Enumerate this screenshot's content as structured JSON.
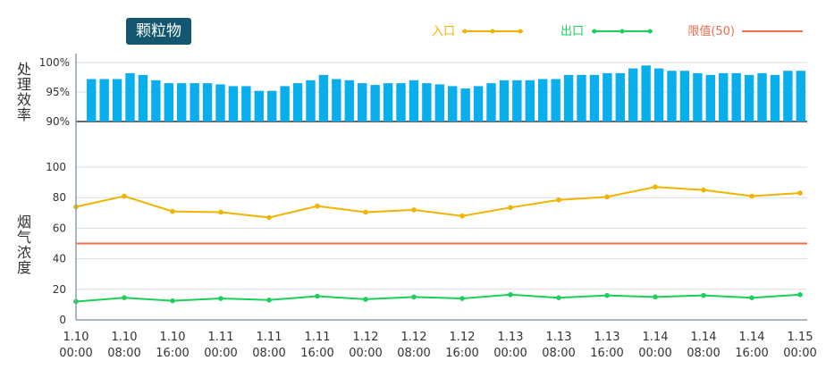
{
  "header": {
    "title": "颗粒物"
  },
  "legend": [
    {
      "label": "入口",
      "color": "#f0b400",
      "type": "line-dot"
    },
    {
      "label": "出口",
      "color": "#1ad058",
      "type": "line-dot"
    },
    {
      "label": "限值(50)",
      "color": "#f26c4f",
      "type": "line"
    }
  ],
  "chart_data": [
    {
      "type": "bar",
      "ylabel": "处理效率",
      "ylim": [
        90,
        100
      ],
      "yticks": [
        "90%",
        "95%",
        "100%"
      ],
      "color": "#0aaeea",
      "values": [
        97.2,
        97.2,
        97.2,
        98.2,
        97.9,
        97.0,
        96.5,
        96.5,
        96.5,
        96.5,
        96.3,
        96.0,
        96.0,
        95.2,
        95.2,
        96.0,
        96.5,
        97.0,
        97.9,
        97.2,
        97.0,
        96.5,
        96.2,
        96.5,
        96.5,
        97.0,
        96.5,
        96.3,
        96.0,
        95.6,
        96.0,
        96.5,
        97.0,
        97.0,
        97.0,
        97.2,
        97.2,
        97.9,
        97.9,
        97.9,
        98.2,
        98.2,
        99.0,
        99.5,
        99.0,
        98.6,
        98.6,
        98.2,
        97.9,
        98.2,
        98.2,
        97.9,
        98.2,
        97.9,
        98.6,
        98.6
      ]
    },
    {
      "type": "line",
      "ylabel": "烟气浓度",
      "ylim": [
        0,
        100
      ],
      "yticks": [
        "0",
        "20",
        "40",
        "60",
        "80",
        "100"
      ],
      "x": [
        "1.10\n00:00",
        "1.10\n08:00",
        "1.10\n16:00",
        "1.11\n00:00",
        "1.11\n08:00",
        "1.11\n16:00",
        "1.12\n00:00",
        "1.12\n08:00",
        "1.12\n16:00",
        "1.13\n00:00",
        "1.13\n08:00",
        "1.13\n16:00",
        "1.14\n00:00",
        "1.14\n08:00",
        "1.14\n16:00",
        "1.15\n00:00"
      ],
      "series": [
        {
          "name": "入口",
          "color": "#f0b400",
          "values": [
            74,
            81,
            71,
            70.5,
            67,
            74.5,
            70.5,
            72,
            68,
            73.5,
            78.5,
            80.5,
            87,
            85,
            81,
            83
          ]
        },
        {
          "name": "出口",
          "color": "#1ad058",
          "values": [
            12,
            14.5,
            12.5,
            14,
            13,
            15.5,
            13.5,
            15,
            14,
            16.5,
            14.5,
            16,
            15,
            16,
            14.5,
            16.5
          ]
        }
      ],
      "reference_lines": [
        {
          "name": "限值(50)",
          "value": 50,
          "color": "#f26c4f"
        }
      ]
    }
  ]
}
